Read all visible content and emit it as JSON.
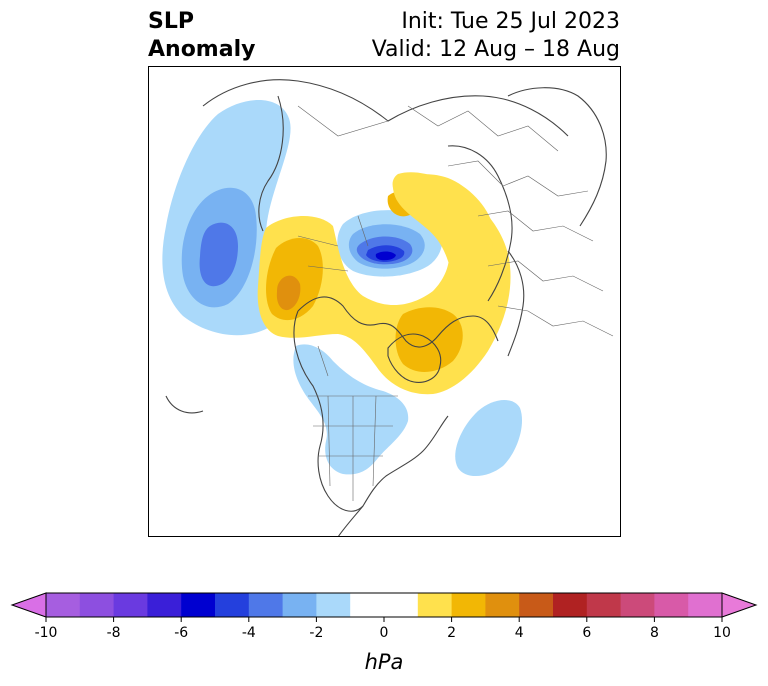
{
  "title": {
    "left_line1": "SLP",
    "left_line2": "Anomaly",
    "right_line1": "Init: Tue 25 Jul 2023",
    "right_line2": "Valid: 12 Aug – 18 Aug"
  },
  "colorbar": {
    "label": "hPa",
    "ticks": [
      "-10",
      "-8",
      "-6",
      "-4",
      "-2",
      "0",
      "2",
      "4",
      "6",
      "8",
      "10"
    ],
    "extend_low_color": "#d96fe6",
    "extend_high_color": "#e87ad9",
    "bins": [
      {
        "from": -10,
        "to": -9,
        "color": "#a65ee0"
      },
      {
        "from": -9,
        "to": -8,
        "color": "#8d4fe0"
      },
      {
        "from": -8,
        "to": -7,
        "color": "#6a3ae0"
      },
      {
        "from": -7,
        "to": -6,
        "color": "#3a1fd8"
      },
      {
        "from": -6,
        "to": -5,
        "color": "#0000d0"
      },
      {
        "from": -5,
        "to": -4,
        "color": "#2440dd"
      },
      {
        "from": -4,
        "to": -3,
        "color": "#4f78e8"
      },
      {
        "from": -3,
        "to": -2,
        "color": "#78b2f2"
      },
      {
        "from": -2,
        "to": -1,
        "color": "#aad9fa"
      },
      {
        "from": -1,
        "to": 1,
        "color": "#ffffff"
      },
      {
        "from": 1,
        "to": 2,
        "color": "#ffe14d"
      },
      {
        "from": 2,
        "to": 3,
        "color": "#f2b705"
      },
      {
        "from": 3,
        "to": 4,
        "color": "#e0900e"
      },
      {
        "from": 4,
        "to": 5,
        "color": "#c85a18"
      },
      {
        "from": 5,
        "to": 6,
        "color": "#b02222"
      },
      {
        "from": 6,
        "to": 7,
        "color": "#c0384a"
      },
      {
        "from": 7,
        "to": 8,
        "color": "#cc4a7a"
      },
      {
        "from": 8,
        "to": 9,
        "color": "#d85aa8"
      },
      {
        "from": 9,
        "to": 10,
        "color": "#e070d0"
      }
    ]
  },
  "map": {
    "projection": "north-polar-stereographic",
    "features": [
      "coastlines",
      "country-borders",
      "us-state-borders",
      "canadian-province-borders"
    ],
    "anomaly_regions": [
      {
        "name": "north-pacific-low",
        "sign": "negative",
        "min_hpa": -4
      },
      {
        "name": "arctic-low",
        "sign": "negative",
        "min_hpa": -6
      },
      {
        "name": "alaska-high",
        "sign": "positive",
        "max_hpa": 4
      },
      {
        "name": "greenland-high",
        "sign": "positive",
        "max_hpa": 3
      },
      {
        "name": "eurasia-high",
        "sign": "positive",
        "max_hpa": 2
      },
      {
        "name": "north-america-low",
        "sign": "negative",
        "min_hpa": -2
      },
      {
        "name": "north-atlantic-low",
        "sign": "negative",
        "min_hpa": -1
      }
    ]
  }
}
